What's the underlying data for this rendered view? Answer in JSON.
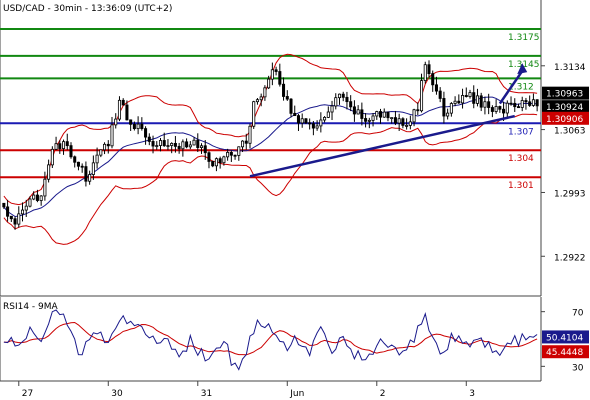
{
  "header": {
    "title": "USD/CAD - 30min - 13:36:09 (UTC+2)"
  },
  "rsi_header": {
    "title": "RSI14 - 9MA"
  },
  "colors": {
    "background": "#ffffff",
    "candle": "#000000",
    "bollinger": "#cc0000",
    "ma": "#1a1a8c",
    "support_green": "#118811",
    "level_blue": "#1a1ab3",
    "level_red": "#cc0000",
    "trendline": "#1a1a8c",
    "arrow": "#1a1a8c",
    "price_box_dark": "#000000",
    "price_box_red": "#cc0000",
    "rsi_box_navy": "#1a1a8c",
    "rsi_box_red": "#cc0000",
    "rsi_line": "#1a1a8c",
    "rsi_ma": "#cc0000"
  },
  "chart_data": [
    {
      "type": "candlestick",
      "title": "USD/CAD - 30min - 13:36:09 (UTC+2)",
      "ylim": [
        1.288,
        1.3205
      ],
      "y_ticks": [
        1.3134,
        1.3063,
        1.2993,
        1.2922
      ],
      "x_ticks": [
        "27",
        "30",
        "31",
        "Jun",
        "2",
        "3"
      ],
      "x_tick_positions": [
        4,
        28,
        52,
        76,
        100,
        124
      ],
      "n_bars": 144,
      "levels": [
        {
          "label": "1.3175",
          "value": 1.3175,
          "color": "#118811"
        },
        {
          "label": "1.3145",
          "value": 1.3145,
          "color": "#118811"
        },
        {
          "label": "1.312",
          "value": 1.312,
          "color": "#118811"
        },
        {
          "label": "1.307",
          "value": 1.307,
          "color": "#1a1ab3"
        },
        {
          "label": "1.304",
          "value": 1.304,
          "color": "#cc0000"
        },
        {
          "label": "1.301",
          "value": 1.301,
          "color": "#cc0000"
        }
      ],
      "trendline": {
        "from": [
          66,
          1.3011
        ],
        "to": [
          137,
          1.3078
        ]
      },
      "arrow": {
        "from": [
          133,
          1.3092
        ],
        "to": [
          139,
          1.3137
        ]
      },
      "current_prices": [
        {
          "label": "1.30963",
          "value": 1.30963,
          "style": "dark"
        },
        {
          "label": "1.30924",
          "value": 1.30924,
          "style": "dark"
        },
        {
          "label": "1.30906",
          "value": 1.30906,
          "style": "red"
        }
      ],
      "anchors": [
        [
          0,
          1.2975
        ],
        [
          3,
          1.296
        ],
        [
          6,
          1.2975
        ],
        [
          10,
          1.2995
        ],
        [
          13,
          1.304
        ],
        [
          16,
          1.3045
        ],
        [
          19,
          1.303
        ],
        [
          22,
          1.301
        ],
        [
          25,
          1.303
        ],
        [
          28,
          1.305
        ],
        [
          31,
          1.3095
        ],
        [
          34,
          1.307
        ],
        [
          37,
          1.3065
        ],
        [
          40,
          1.305
        ],
        [
          43,
          1.3048
        ],
        [
          47,
          1.3045
        ],
        [
          50,
          1.305
        ],
        [
          53,
          1.304
        ],
        [
          56,
          1.3025
        ],
        [
          59,
          1.303
        ],
        [
          62,
          1.304
        ],
        [
          65,
          1.305
        ],
        [
          67,
          1.309
        ],
        [
          70,
          1.311
        ],
        [
          72,
          1.3135
        ],
        [
          75,
          1.31
        ],
        [
          78,
          1.308
        ],
        [
          81,
          1.3065
        ],
        [
          84,
          1.307
        ],
        [
          87,
          1.308
        ],
        [
          90,
          1.31
        ],
        [
          93,
          1.3085
        ],
        [
          97,
          1.3075
        ],
        [
          100,
          1.308
        ],
        [
          104,
          1.3075
        ],
        [
          108,
          1.3072
        ],
        [
          111,
          1.3085
        ],
        [
          113,
          1.314
        ],
        [
          115,
          1.3115
        ],
        [
          118,
          1.308
        ],
        [
          121,
          1.3095
        ],
        [
          125,
          1.31
        ],
        [
          129,
          1.309
        ],
        [
          133,
          1.3085
        ],
        [
          137,
          1.309
        ]
      ]
    },
    {
      "type": "line",
      "title": "RSI14 - 9MA",
      "ylim": [
        20,
        80
      ],
      "y_ticks": [
        70,
        30
      ],
      "series": [
        {
          "name": "RSI14",
          "color": "#1a1a8c"
        },
        {
          "name": "9MA",
          "color": "#cc0000"
        }
      ],
      "rsi_anchors": [
        [
          0,
          52
        ],
        [
          3,
          48
        ],
        [
          5,
          50
        ],
        [
          8,
          58
        ],
        [
          10,
          52
        ],
        [
          12,
          62
        ],
        [
          15,
          72
        ],
        [
          18,
          60
        ],
        [
          20,
          40
        ],
        [
          22,
          45
        ],
        [
          25,
          55
        ],
        [
          28,
          50
        ],
        [
          31,
          68
        ],
        [
          33,
          60
        ],
        [
          36,
          58
        ],
        [
          39,
          55
        ],
        [
          42,
          50
        ],
        [
          45,
          45
        ],
        [
          48,
          40
        ],
        [
          50,
          50
        ],
        [
          53,
          38
        ],
        [
          55,
          36
        ],
        [
          57,
          40
        ],
        [
          59,
          50
        ],
        [
          61,
          35
        ],
        [
          63,
          30
        ],
        [
          66,
          48
        ],
        [
          68,
          60
        ],
        [
          70,
          62
        ],
        [
          72,
          54
        ],
        [
          74,
          48
        ],
        [
          76,
          46
        ],
        [
          79,
          50
        ],
        [
          82,
          42
        ],
        [
          85,
          55
        ],
        [
          88,
          44
        ],
        [
          91,
          50
        ],
        [
          94,
          40
        ],
        [
          97,
          35
        ],
        [
          100,
          44
        ],
        [
          103,
          48
        ],
        [
          106,
          40
        ],
        [
          109,
          47
        ],
        [
          111,
          58
        ],
        [
          113,
          70
        ],
        [
          115,
          52
        ],
        [
          117,
          42
        ],
        [
          120,
          50
        ],
        [
          123,
          47
        ],
        [
          126,
          45
        ],
        [
          129,
          48
        ],
        [
          132,
          42
        ],
        [
          134,
          40
        ],
        [
          137,
          49
        ]
      ],
      "current": [
        {
          "label": "50.4104",
          "value": 50.4104,
          "style": "navy"
        },
        {
          "label": "45.4448",
          "value": 45.4448,
          "style": "red"
        }
      ]
    }
  ]
}
